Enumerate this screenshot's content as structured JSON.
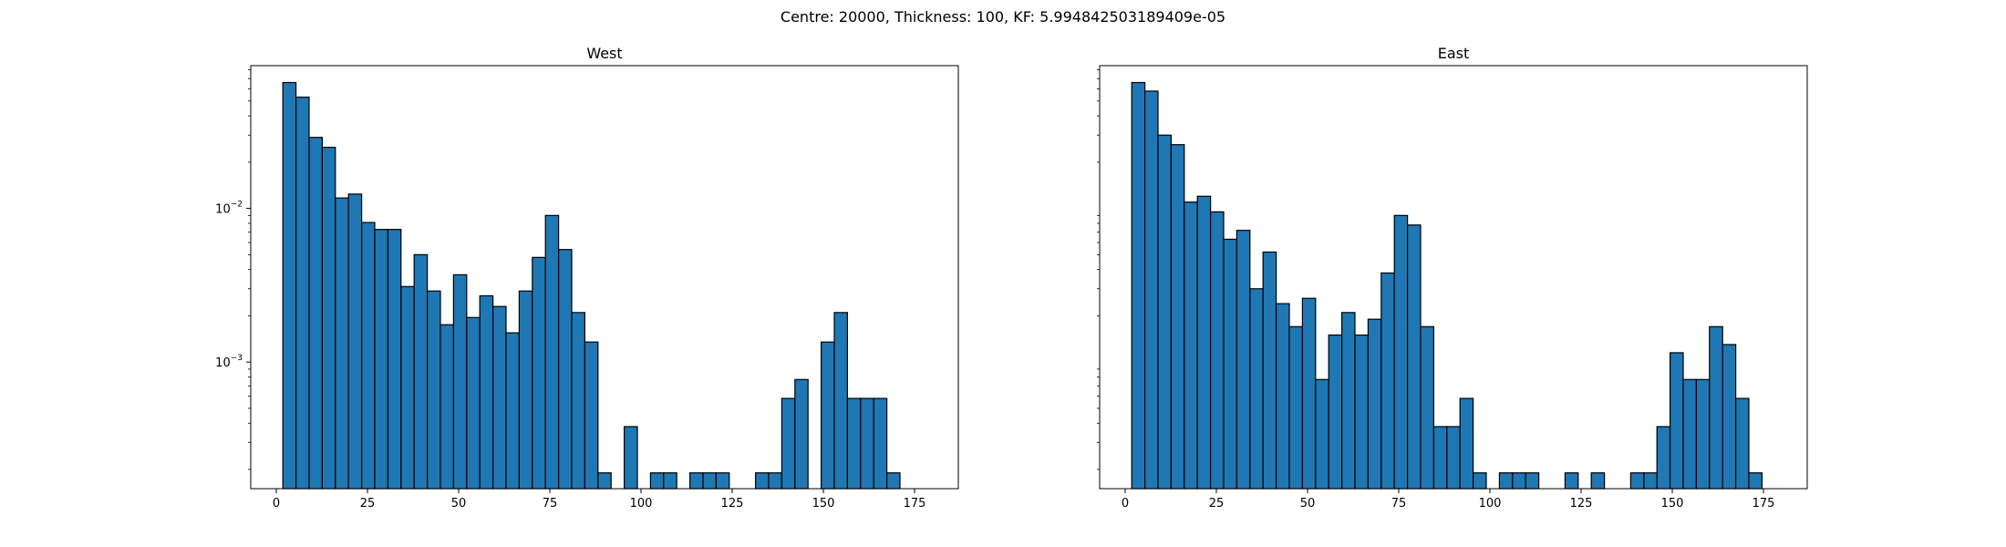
{
  "suptitle": "Centre: 20000, Thickness: 100, KF: 5.994842503189409e-05",
  "chart_data": [
    {
      "type": "bar",
      "subtype": "histogram",
      "title": "West",
      "xlabel": "",
      "ylabel": "",
      "y_scale": "log",
      "xlim": [
        -7,
        187
      ],
      "ylim": [
        0.00015,
        0.085
      ],
      "bin_width": 3.6,
      "bin_start": 1.8,
      "x_ticks": [
        0,
        25,
        50,
        75,
        100,
        125,
        150,
        175
      ],
      "y_ticks": [
        {
          "base": "10",
          "exp": "−2",
          "value": 0.01
        },
        {
          "base": "10",
          "exp": "−3",
          "value": 0.001
        }
      ],
      "values": [
        0.066,
        0.053,
        0.029,
        0.025,
        0.0117,
        0.0124,
        0.0081,
        0.0073,
        0.0073,
        0.0031,
        0.005,
        0.0029,
        0.00175,
        0.0037,
        0.00195,
        0.0027,
        0.0023,
        0.00155,
        0.0029,
        0.0048,
        0.009,
        0.0054,
        0.0021,
        0.00135,
        0.00019,
        0,
        0.00038,
        0,
        0.00019,
        0.00019,
        0,
        0.00019,
        0.00019,
        0.00019,
        0,
        0,
        0.00019,
        0.00019,
        0.00058,
        0.00077,
        0,
        0.00135,
        0.0021,
        0.00058,
        0.00058,
        0.00058,
        0.00019
      ],
      "bar_color": "#1f77b4",
      "edge_color": "#000000",
      "grid": false
    },
    {
      "type": "bar",
      "subtype": "histogram",
      "title": "East",
      "xlabel": "",
      "ylabel": "",
      "y_scale": "log",
      "xlim": [
        -7,
        187
      ],
      "ylim": [
        0.00015,
        0.085
      ],
      "bin_width": 3.6,
      "bin_start": 1.8,
      "x_ticks": [
        0,
        25,
        50,
        75,
        100,
        125,
        150,
        175
      ],
      "y_ticks": [],
      "values": [
        0.066,
        0.058,
        0.03,
        0.026,
        0.011,
        0.012,
        0.0095,
        0.0063,
        0.0072,
        0.003,
        0.0052,
        0.0024,
        0.0017,
        0.0026,
        0.00077,
        0.0015,
        0.0021,
        0.0015,
        0.0019,
        0.0038,
        0.009,
        0.0078,
        0.0017,
        0.00038,
        0.00038,
        0.00058,
        0.00019,
        0,
        0.00019,
        0.00019,
        0.00019,
        0,
        0,
        0.00019,
        0,
        0.00019,
        0,
        0,
        0.00019,
        0.00019,
        0.00038,
        0.00115,
        0.00077,
        0.00077,
        0.0017,
        0.0013,
        0.00058,
        0.00019
      ],
      "bar_color": "#1f77b4",
      "edge_color": "#000000",
      "grid": false
    }
  ]
}
